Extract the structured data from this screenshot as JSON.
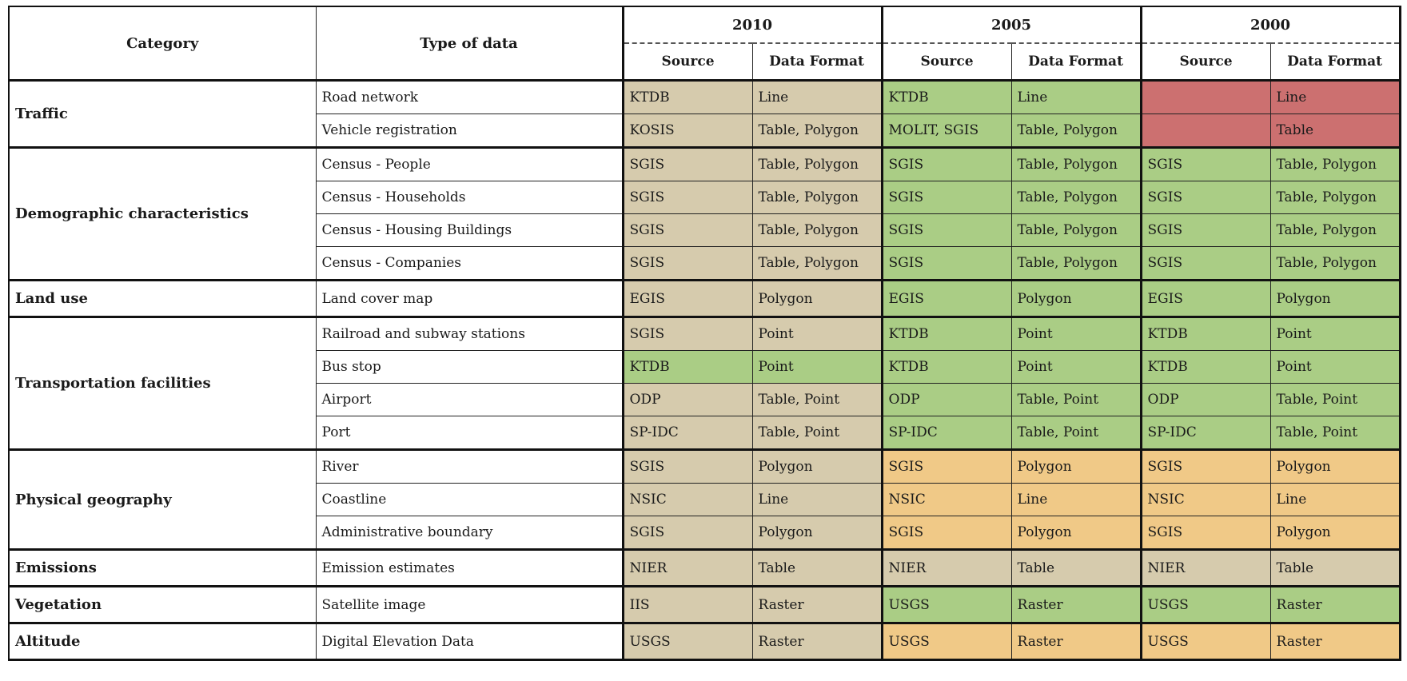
{
  "header": {
    "category": "Category",
    "type_of_data": "Type of data",
    "years": [
      "2010",
      "2005",
      "2000"
    ],
    "source": "Source",
    "data_format": "Data Format"
  },
  "colors": {
    "tan": "#d6cbad",
    "green": "#aacd85",
    "orange": "#f0c987",
    "red": "#cc7070"
  },
  "groups": [
    {
      "category": "Traffic",
      "rows": [
        {
          "type": "Road network",
          "cells": [
            [
              "KTDB",
              "Line",
              "t"
            ],
            [
              "KTDB",
              "Line",
              "g"
            ],
            [
              "",
              "Line",
              "r"
            ]
          ]
        },
        {
          "type": "Vehicle registration",
          "cells": [
            [
              "KOSIS",
              "Table, Polygon",
              "t"
            ],
            [
              "MOLIT, SGIS",
              "Table, Polygon",
              "g"
            ],
            [
              "",
              "Table",
              "r"
            ]
          ]
        }
      ]
    },
    {
      "category": "Demographic characteristics",
      "rows": [
        {
          "type": "Census - People",
          "cells": [
            [
              "SGIS",
              "Table, Polygon",
              "t"
            ],
            [
              "SGIS",
              "Table, Polygon",
              "g"
            ],
            [
              "SGIS",
              "Table, Polygon",
              "g"
            ]
          ]
        },
        {
          "type": "Census - Households",
          "cells": [
            [
              "SGIS",
              "Table, Polygon",
              "t"
            ],
            [
              "SGIS",
              "Table, Polygon",
              "g"
            ],
            [
              "SGIS",
              "Table, Polygon",
              "g"
            ]
          ]
        },
        {
          "type": "Census - Housing Buildings",
          "cells": [
            [
              "SGIS",
              "Table, Polygon",
              "t"
            ],
            [
              "SGIS",
              "Table, Polygon",
              "g"
            ],
            [
              "SGIS",
              "Table, Polygon",
              "g"
            ]
          ]
        },
        {
          "type": "Census - Companies",
          "cells": [
            [
              "SGIS",
              "Table, Polygon",
              "t"
            ],
            [
              "SGIS",
              "Table, Polygon",
              "g"
            ],
            [
              "SGIS",
              "Table, Polygon",
              "g"
            ]
          ]
        }
      ]
    },
    {
      "category": "Land use",
      "rows": [
        {
          "type": "Land cover map",
          "cells": [
            [
              "EGIS",
              "Polygon",
              "t"
            ],
            [
              "EGIS",
              "Polygon",
              "g"
            ],
            [
              "EGIS",
              "Polygon",
              "g"
            ]
          ]
        }
      ]
    },
    {
      "category": "Transportation facilities",
      "rows": [
        {
          "type": "Railroad and subway stations",
          "cells": [
            [
              "SGIS",
              "Point",
              "t"
            ],
            [
              "KTDB",
              "Point",
              "g"
            ],
            [
              "KTDB",
              "Point",
              "g"
            ]
          ]
        },
        {
          "type": "Bus stop",
          "cells": [
            [
              "KTDB",
              "Point",
              "g"
            ],
            [
              "KTDB",
              "Point",
              "g"
            ],
            [
              "KTDB",
              "Point",
              "g"
            ]
          ]
        },
        {
          "type": "Airport",
          "cells": [
            [
              "ODP",
              "Table, Point",
              "t"
            ],
            [
              "ODP",
              "Table, Point",
              "g"
            ],
            [
              "ODP",
              "Table, Point",
              "g"
            ]
          ]
        },
        {
          "type": "Port",
          "cells": [
            [
              "SP-IDC",
              "Table, Point",
              "t"
            ],
            [
              "SP-IDC",
              "Table, Point",
              "g"
            ],
            [
              "SP-IDC",
              "Table, Point",
              "g"
            ]
          ]
        }
      ]
    },
    {
      "category": "Physical geography",
      "rows": [
        {
          "type": "River",
          "cells": [
            [
              "SGIS",
              "Polygon",
              "t"
            ],
            [
              "SGIS",
              "Polygon",
              "o"
            ],
            [
              "SGIS",
              "Polygon",
              "o"
            ]
          ]
        },
        {
          "type": "Coastline",
          "cells": [
            [
              "NSIC",
              "Line",
              "t"
            ],
            [
              "NSIC",
              "Line",
              "o"
            ],
            [
              "NSIC",
              "Line",
              "o"
            ]
          ]
        },
        {
          "type": "Administrative  boundary",
          "cells": [
            [
              "SGIS",
              "Polygon",
              "t"
            ],
            [
              "SGIS",
              "Polygon",
              "o"
            ],
            [
              "SGIS",
              "Polygon",
              "o"
            ]
          ]
        }
      ]
    },
    {
      "category": "Emissions",
      "rows": [
        {
          "type": "Emission estimates",
          "cells": [
            [
              "NIER",
              "Table",
              "t"
            ],
            [
              "NIER",
              "Table",
              "t"
            ],
            [
              "NIER",
              "Table",
              "t"
            ]
          ]
        }
      ]
    },
    {
      "category": "Vegetation",
      "rows": [
        {
          "type": "Satellite image",
          "cells": [
            [
              "IIS",
              "Raster",
              "t"
            ],
            [
              "USGS",
              "Raster",
              "g"
            ],
            [
              "USGS",
              "Raster",
              "g"
            ]
          ]
        }
      ]
    },
    {
      "category": "Altitude",
      "rows": [
        {
          "type": "Digital Elevation Data",
          "cells": [
            [
              "USGS",
              "Raster",
              "t"
            ],
            [
              "USGS",
              "Raster",
              "o"
            ],
            [
              "USGS",
              "Raster",
              "o"
            ]
          ]
        }
      ]
    }
  ]
}
